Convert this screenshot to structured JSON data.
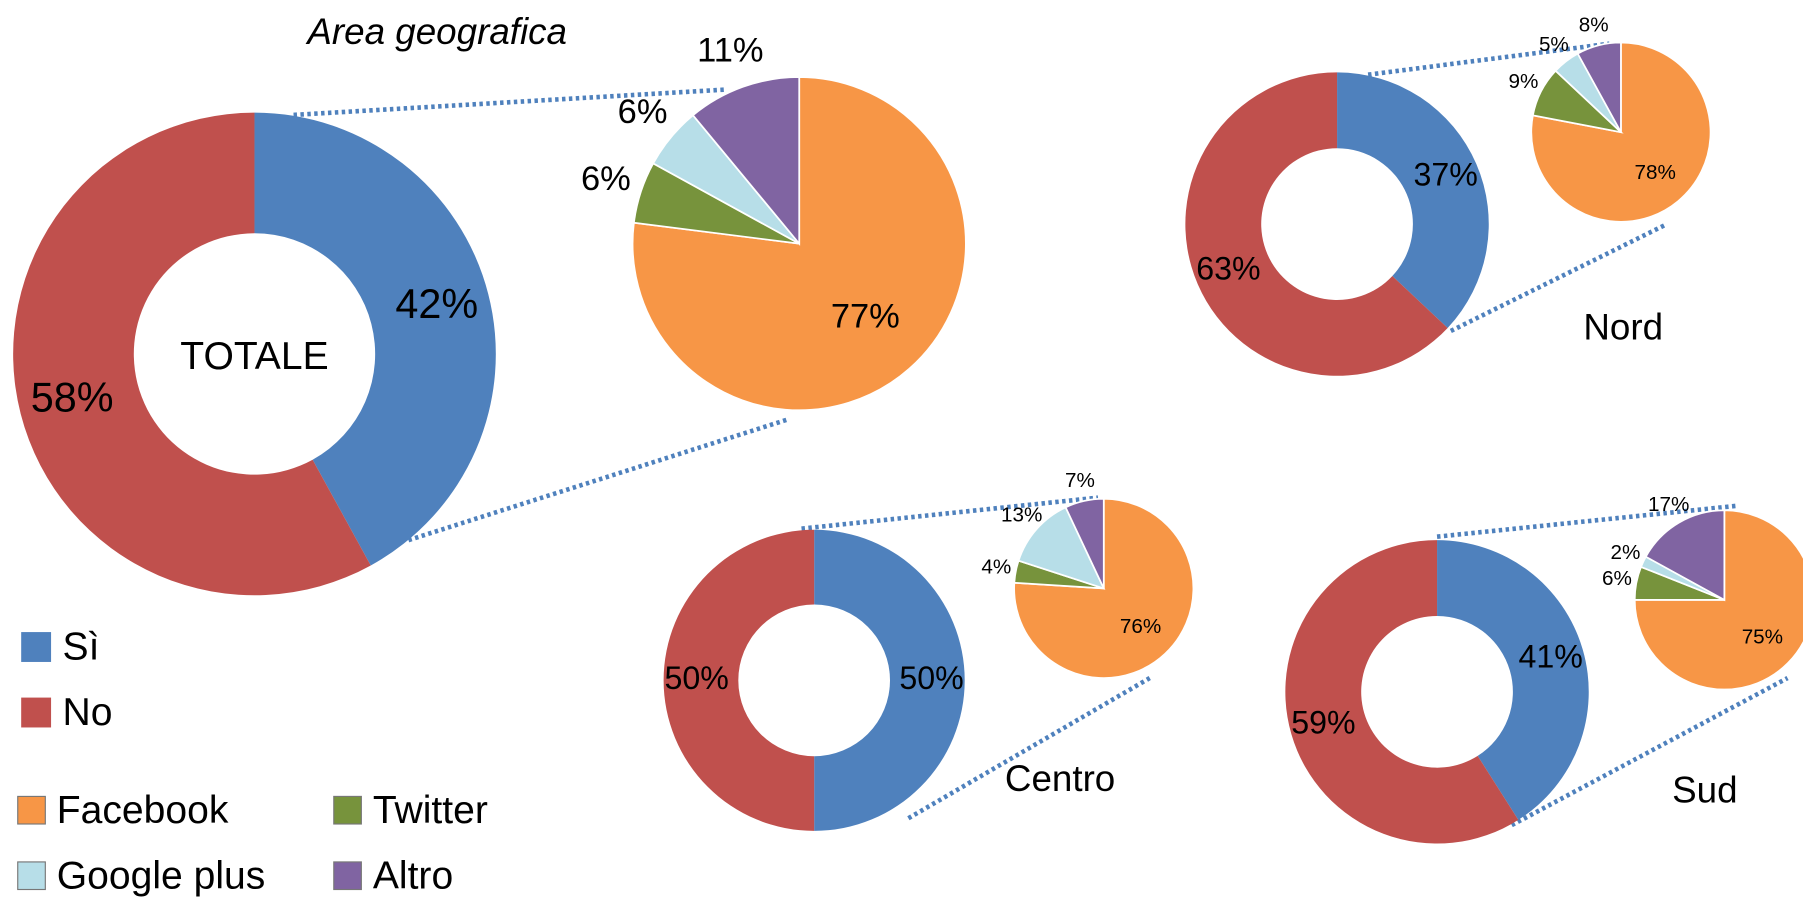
{
  "chart_data": [
    {
      "type": "donut",
      "title": "Area geografica",
      "label": "TOTALE",
      "categories": [
        "Sì",
        "No"
      ],
      "values": [
        42,
        58
      ],
      "value_labels": [
        "42%",
        "58%"
      ],
      "colors": [
        "#4f81bd",
        "#c0504d"
      ]
    },
    {
      "type": "pie",
      "categories": [
        "Facebook",
        "Twitter",
        "Google plus",
        "Altro"
      ],
      "values": [
        77,
        6,
        6,
        11
      ],
      "value_labels": [
        "77%",
        "6%",
        "6%",
        "11%"
      ],
      "colors": [
        "#f79646",
        "#77933c",
        "#b7dee8",
        "#8064a2"
      ]
    },
    {
      "type": "donut",
      "label": "Nord",
      "categories": [
        "Sì",
        "No"
      ],
      "values": [
        37,
        63
      ],
      "value_labels": [
        "37%",
        "63%"
      ],
      "colors": [
        "#4f81bd",
        "#c0504d"
      ]
    },
    {
      "type": "pie",
      "categories": [
        "Facebook",
        "Twitter",
        "Google plus",
        "Altro"
      ],
      "values": [
        78,
        9,
        5,
        8
      ],
      "value_labels": [
        "78%",
        "9%",
        "5%",
        "8%"
      ],
      "colors": [
        "#f79646",
        "#77933c",
        "#b7dee8",
        "#8064a2"
      ]
    },
    {
      "type": "donut",
      "label": "Centro",
      "categories": [
        "Sì",
        "No"
      ],
      "values": [
        50,
        50
      ],
      "value_labels": [
        "50%",
        "50%"
      ],
      "colors": [
        "#4f81bd",
        "#c0504d"
      ]
    },
    {
      "type": "pie",
      "categories": [
        "Facebook",
        "Twitter",
        "Google plus",
        "Altro"
      ],
      "values": [
        76,
        4,
        13,
        7
      ],
      "value_labels": [
        "76%",
        "4%",
        "13%",
        "7%"
      ],
      "colors": [
        "#f79646",
        "#77933c",
        "#b7dee8",
        "#8064a2"
      ]
    },
    {
      "type": "donut",
      "label": "Sud",
      "categories": [
        "Sì",
        "No"
      ],
      "values": [
        41,
        59
      ],
      "value_labels": [
        "41%",
        "59%"
      ],
      "colors": [
        "#4f81bd",
        "#c0504d"
      ]
    },
    {
      "type": "pie",
      "categories": [
        "Facebook",
        "Twitter",
        "Google plus",
        "Altro"
      ],
      "values": [
        75,
        6,
        2,
        17
      ],
      "value_labels": [
        "75%",
        "6%",
        "2%",
        "17%"
      ],
      "colors": [
        "#f79646",
        "#77933c",
        "#b7dee8",
        "#8064a2"
      ]
    }
  ]
}
